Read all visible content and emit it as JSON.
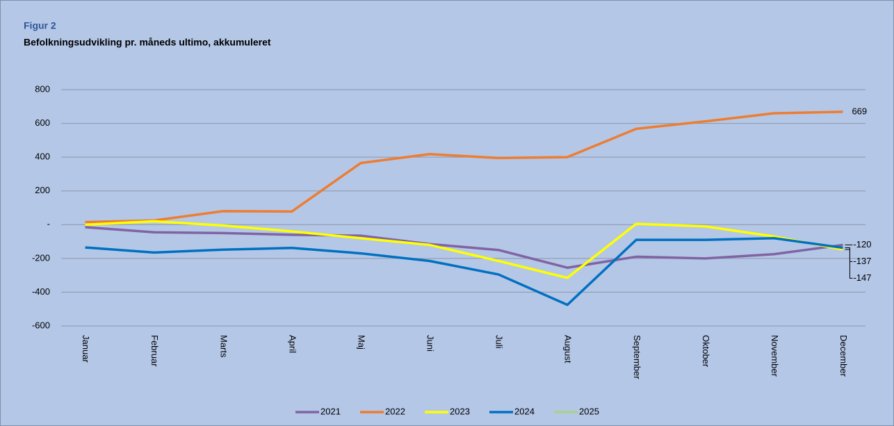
{
  "chart_data": {
    "type": "line",
    "figure_label": "Figur 2",
    "title": "Befolkningsudvikling pr. måneds ultimo, akkumuleret",
    "categories": [
      "Januar",
      "Februar",
      "Marts",
      "April",
      "Maj",
      "Juni",
      "Juli",
      "August",
      "September",
      "Oktober",
      "November",
      "December"
    ],
    "series": [
      {
        "name": "2021",
        "color": "#8064a2",
        "values": [
          -15,
          -45,
          -50,
          -60,
          -65,
          -115,
          -150,
          -255,
          -190,
          -200,
          -175,
          -120
        ]
      },
      {
        "name": "2022",
        "color": "#ed7d31",
        "values": [
          15,
          25,
          80,
          78,
          365,
          418,
          395,
          400,
          568,
          612,
          660,
          669
        ]
      },
      {
        "name": "2023",
        "color": "#ffff00",
        "values": [
          0,
          20,
          -5,
          -40,
          -80,
          -120,
          -215,
          -315,
          5,
          -10,
          -70,
          -147
        ]
      },
      {
        "name": "2024",
        "color": "#0070c0",
        "values": [
          -135,
          -165,
          -148,
          -138,
          -170,
          -215,
          -295,
          -475,
          -90,
          -90,
          -80,
          -137
        ]
      },
      {
        "name": "2025",
        "color": "#a9d18e",
        "values": [
          null,
          null,
          null,
          null,
          null,
          null,
          null,
          null,
          null,
          null,
          null,
          null
        ]
      }
    ],
    "ylim": [
      -600,
      800
    ],
    "yticks": [
      -600,
      -400,
      -200,
      {
        "value": 0,
        "label": "-"
      },
      200,
      400,
      600,
      800
    ],
    "grid": true
  }
}
